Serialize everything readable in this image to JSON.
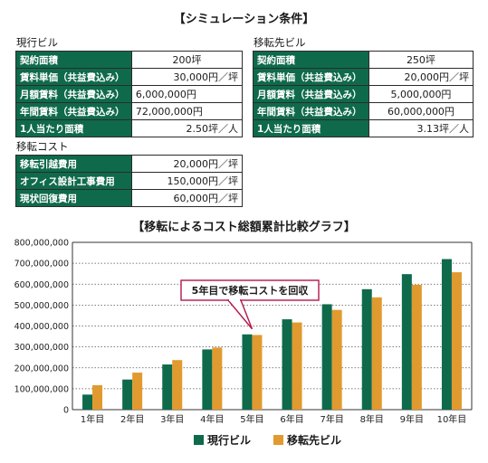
{
  "simulation_title": "【シミュレーション条件】",
  "current": {
    "label": "現行ビル",
    "rows": [
      {
        "key": "契約面積",
        "value": "200坪",
        "align": "c"
      },
      {
        "key": "賃料単価（共益費込み）",
        "value": "30,000円／坪",
        "align": "r"
      },
      {
        "key": "月額賃料（共益費込み）",
        "value": "6,000,000円",
        "align": "l"
      },
      {
        "key": "年間賃料（共益費込み）",
        "value": "72,000,000円",
        "align": "l"
      },
      {
        "key": "1人当たり面積",
        "value": "2.50坪／人",
        "align": "r"
      }
    ]
  },
  "destination": {
    "label": "移転先ビル",
    "rows": [
      {
        "key": "契約面積",
        "value": "250坪",
        "align": "c"
      },
      {
        "key": "賃料単価（共益費込み）",
        "value": "20,000円／坪",
        "align": "r"
      },
      {
        "key": "月額賃料（共益費込み）",
        "value": "5,000,000円",
        "align": "c"
      },
      {
        "key": "年間賃料（共益費込み）",
        "value": "60,000,000円",
        "align": "c"
      },
      {
        "key": "1人当たり面積",
        "value": "3.13坪／人",
        "align": "r"
      }
    ]
  },
  "moving_cost": {
    "label": "移転コスト",
    "rows": [
      {
        "key": "移転引越費用",
        "value": "20,000円／坪",
        "align": "r"
      },
      {
        "key": "オフィス設計工事費用",
        "value": "150,000円／坪",
        "align": "r"
      },
      {
        "key": "現状回復費用",
        "value": "60,000円／坪",
        "align": "r"
      }
    ]
  },
  "chart_title": "【移転によるコスト総額累計比較グラフ】",
  "colors": {
    "header_green": "#0f6a4c",
    "series_current": "#0f6a4c",
    "series_destination": "#e19a2f",
    "callout_border": "#b5164b"
  },
  "chart_data": {
    "type": "bar",
    "categories": [
      "1年目",
      "2年目",
      "3年目",
      "4年目",
      "5年目",
      "6年目",
      "7年目",
      "8年目",
      "9年目",
      "10年目"
    ],
    "series": [
      {
        "name": "現行ビル",
        "values": [
          72000000,
          144000000,
          216000000,
          288000000,
          360000000,
          432000000,
          504000000,
          576000000,
          648000000,
          720000000
        ]
      },
      {
        "name": "移転先ビル",
        "values": [
          117000000,
          177000000,
          237000000,
          297000000,
          357000000,
          417000000,
          477000000,
          537000000,
          597000000,
          657000000
        ]
      }
    ],
    "ylim": [
      0,
      800000000
    ],
    "yticks": [
      "0",
      "100,000,000",
      "200,000,000",
      "300,000,000",
      "400,000,000",
      "500,000,000",
      "600,000,000",
      "700,000,000",
      "800,000,000"
    ],
    "grid": true,
    "legend_position": "bottom",
    "annotation": {
      "text": "5年目で移転コストを回収",
      "category": "5年目"
    }
  }
}
